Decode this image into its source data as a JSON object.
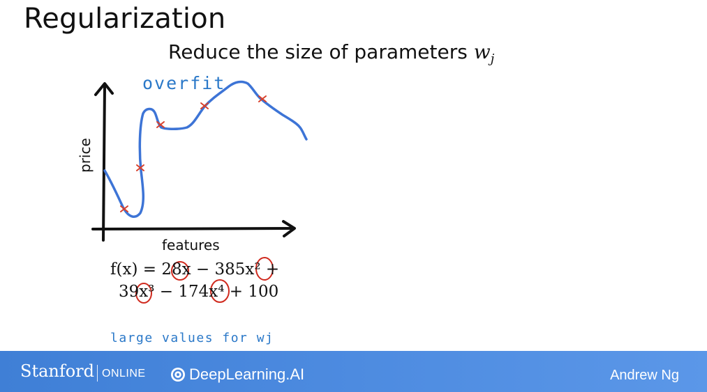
{
  "slide": {
    "title": "Regularization",
    "subtitle_text": "Reduce the size of parameters ",
    "subtitle_var": "w",
    "subtitle_sub": "j"
  },
  "plot": {
    "y_axis_label": "price",
    "x_axis_label": "features",
    "curve_annotation": "overfit",
    "curve_color": "#3d74d6",
    "marker_color": "#d8402b"
  },
  "formula": {
    "line1": "f(x) = 28x − 385x² +",
    "line2": "39x³ − 174x⁴ + 100"
  },
  "note": {
    "text": "large values for wj",
    "color": "#2a78c8"
  },
  "footer": {
    "stanford": "Stanford",
    "online": "ONLINE",
    "deeplearning": "DeepLearning.AI",
    "presenter": "Andrew Ng",
    "background": "#4a87dd"
  }
}
